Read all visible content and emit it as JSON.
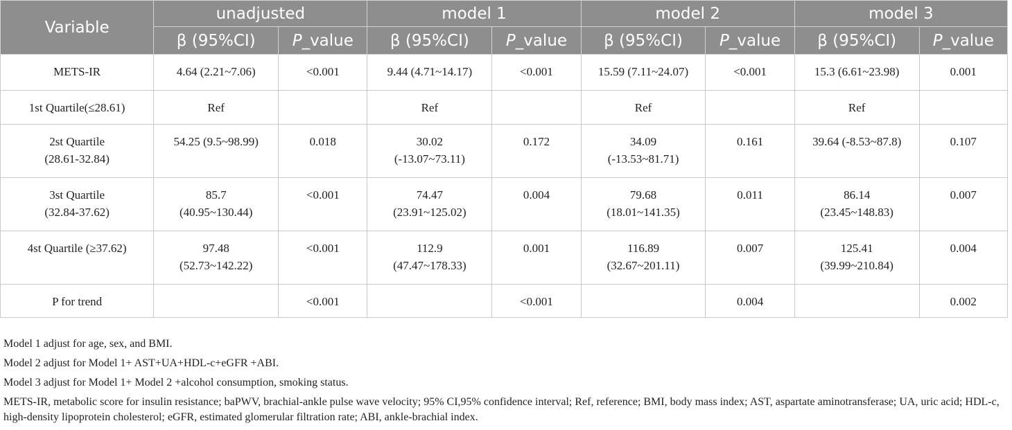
{
  "header": {
    "variable": "Variable",
    "groups": [
      "unadjusted",
      "model 1",
      "model 2",
      "model 3"
    ],
    "beta_label": "β (95%CI)",
    "p_label_italic": "P",
    "p_label_rest": "_value"
  },
  "rows": [
    {
      "variable": [
        "METS-IR"
      ],
      "cells": [
        {
          "beta": [
            "4.64 (2.21~7.06)"
          ],
          "p": "<0.001"
        },
        {
          "beta": [
            "9.44 (4.71~14.17)"
          ],
          "p": "<0.001"
        },
        {
          "beta": [
            "15.59 (7.11~24.07)"
          ],
          "p": "<0.001"
        },
        {
          "beta": [
            "15.3 (6.61~23.98)"
          ],
          "p": "0.001"
        }
      ]
    },
    {
      "variable": [
        "1st Quartile(≤28.61)"
      ],
      "cells": [
        {
          "beta": [
            "Ref"
          ],
          "p": ""
        },
        {
          "beta": [
            "Ref"
          ],
          "p": ""
        },
        {
          "beta": [
            "Ref"
          ],
          "p": ""
        },
        {
          "beta": [
            "Ref"
          ],
          "p": ""
        }
      ]
    },
    {
      "variable": [
        "2st Quartile",
        "(28.61-32.84)"
      ],
      "cells": [
        {
          "beta": [
            "54.25 (9.5~98.99)"
          ],
          "p": "0.018"
        },
        {
          "beta": [
            "30.02",
            "(-13.07~73.11)"
          ],
          "p": "0.172"
        },
        {
          "beta": [
            "34.09",
            "(-13.53~81.71)"
          ],
          "p": "0.161"
        },
        {
          "beta": [
            "39.64 (-8.53~87.8)"
          ],
          "p": "0.107"
        }
      ]
    },
    {
      "variable": [
        "3st Quartile",
        "(32.84-37.62)"
      ],
      "cells": [
        {
          "beta": [
            "85.7",
            "(40.95~130.44)"
          ],
          "p": "<0.001"
        },
        {
          "beta": [
            "74.47",
            "(23.91~125.02)"
          ],
          "p": "0.004"
        },
        {
          "beta": [
            "79.68",
            "(18.01~141.35)"
          ],
          "p": "0.011"
        },
        {
          "beta": [
            "86.14",
            "(23.45~148.83)"
          ],
          "p": "0.007"
        }
      ]
    },
    {
      "variable": [
        "4st Quartile (≥37.62)"
      ],
      "cells": [
        {
          "beta": [
            "97.48",
            "(52.73~142.22)"
          ],
          "p": "<0.001"
        },
        {
          "beta": [
            "112.9",
            "(47.47~178.33)"
          ],
          "p": "0.001"
        },
        {
          "beta": [
            "116.89",
            "(32.67~201.11)"
          ],
          "p": "0.007"
        },
        {
          "beta": [
            "125.41",
            "(39.99~210.84)"
          ],
          "p": "0.004"
        }
      ]
    },
    {
      "variable": [
        "P for trend"
      ],
      "cells": [
        {
          "beta": [
            ""
          ],
          "p": "<0.001"
        },
        {
          "beta": [
            ""
          ],
          "p": "<0.001"
        },
        {
          "beta": [
            ""
          ],
          "p": "0.004"
        },
        {
          "beta": [
            ""
          ],
          "p": "0.002"
        }
      ]
    }
  ],
  "footnotes": [
    "Model 1 adjust for age, sex, and BMI.",
    "Model 2 adjust for Model 1+ AST+UA+HDL-c+eGFR +ABI.",
    "Model 3 adjust for Model 1+ Model 2 +alcohol consumption, smoking status.",
    "METS-IR, metabolic score for insulin resistance; baPWV, brachial-ankle pulse wave velocity; 95% CI,95% confidence interval; Ref, reference; BMI, body mass index; AST, aspartate aminotransferase; UA, uric acid; HDL-c, high-density lipoprotein cholesterol; eGFR, estimated glomerular filtration rate; ABI, ankle-brachial index."
  ],
  "colors": {
    "header_bg": "#8e8e8e",
    "header_text": "#ffffff",
    "grid": "#c9c9c9"
  }
}
